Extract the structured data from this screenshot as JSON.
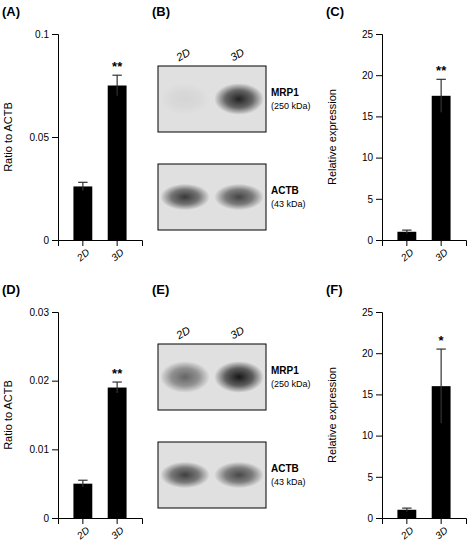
{
  "chart_data": [
    {
      "type": "bar",
      "title": "(A)",
      "categories": [
        "2D",
        "3D"
      ],
      "values": [
        0.026,
        0.075
      ],
      "errors": [
        0.002,
        0.005
      ],
      "color": "#000000",
      "ylim": [
        0,
        0.1
      ],
      "yticks": [
        0,
        0.05,
        0.1
      ],
      "ylabel": "Ratio to ACTB",
      "grid": false,
      "annotations": [
        {
          "text": "**",
          "category": "3D"
        }
      ]
    },
    {
      "type": "blot",
      "title": "(B)",
      "categories": [
        "2D",
        "3D"
      ],
      "series": [
        {
          "name": "MRP1",
          "annotation": "(250 kDa)",
          "values": [
            0.05,
            0.85
          ]
        },
        {
          "name": "ACTB",
          "annotation": "(43 kDa)",
          "values": [
            0.75,
            0.7
          ]
        }
      ]
    },
    {
      "type": "bar",
      "title": "(C)",
      "categories": [
        "2D",
        "3D"
      ],
      "values": [
        1.0,
        17.5
      ],
      "errors": [
        0.2,
        2.0
      ],
      "color": "#000000",
      "ylim": [
        0,
        25
      ],
      "yticks": [
        0,
        5,
        10,
        15,
        20,
        25
      ],
      "ylabel": "Relative expression",
      "grid": false,
      "annotations": [
        {
          "text": "**",
          "category": "3D"
        }
      ]
    },
    {
      "type": "bar",
      "title": "(D)",
      "categories": [
        "2D",
        "3D"
      ],
      "values": [
        0.005,
        0.019
      ],
      "errors": [
        0.0005,
        0.0008
      ],
      "color": "#000000",
      "ylim": [
        0,
        0.03
      ],
      "yticks": [
        0,
        0.01,
        0.02,
        0.03
      ],
      "ylabel": "Ratio to ACTB",
      "grid": false,
      "annotations": [
        {
          "text": "**",
          "category": "3D"
        }
      ]
    },
    {
      "type": "blot",
      "title": "(E)",
      "categories": [
        "2D",
        "3D"
      ],
      "series": [
        {
          "name": "MRP1",
          "annotation": "(250 kDa)",
          "values": [
            0.55,
            0.9
          ]
        },
        {
          "name": "ACTB",
          "annotation": "(43 kDa)",
          "values": [
            0.72,
            0.68
          ]
        }
      ]
    },
    {
      "type": "bar",
      "title": "(F)",
      "categories": [
        "2D",
        "3D"
      ],
      "values": [
        1.0,
        16.0
      ],
      "errors": [
        0.2,
        4.5
      ],
      "color": "#000000",
      "ylim": [
        0,
        25
      ],
      "yticks": [
        0,
        5,
        10,
        15,
        20,
        25
      ],
      "ylabel": "Relative expression",
      "grid": false,
      "annotations": [
        {
          "text": "*",
          "category": "3D"
        }
      ]
    }
  ]
}
